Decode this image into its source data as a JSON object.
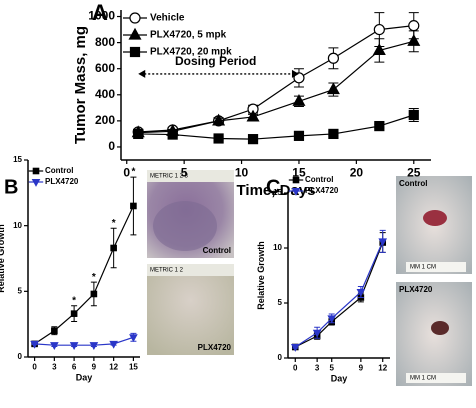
{
  "chart_data": [
    {
      "type": "line",
      "panel": "A",
      "x_label": "Time, Days",
      "y_label": "Tumor Mass, mg",
      "annotation": "Dosing Period",
      "x": [
        1,
        4,
        8,
        11,
        15,
        18,
        22,
        25
      ],
      "xlim": [
        -0.5,
        26.5
      ],
      "xticks": [
        0,
        5,
        10,
        15,
        20,
        25
      ],
      "ylim": [
        -100,
        1050
      ],
      "yticks": [
        0,
        200,
        400,
        600,
        800,
        1000
      ],
      "legend": "top-left",
      "series": [
        {
          "name": "Vehicle",
          "color": "#000000",
          "marker": "circle-open",
          "values": [
            115,
            130,
            200,
            290,
            530,
            680,
            900,
            930
          ],
          "errors": [
            20,
            20,
            25,
            30,
            70,
            80,
            130,
            100
          ]
        },
        {
          "name": "PLX4720, 5 mpk",
          "color": "#000000",
          "marker": "triangle",
          "values": [
            110,
            120,
            200,
            230,
            350,
            440,
            740,
            810
          ],
          "errors": [
            15,
            15,
            20,
            20,
            40,
            50,
            90,
            80
          ]
        },
        {
          "name": "PLX4720, 20 mpk",
          "color": "#000000",
          "marker": "square",
          "values": [
            100,
            95,
            65,
            60,
            85,
            100,
            160,
            245
          ],
          "errors": [
            10,
            10,
            10,
            10,
            10,
            15,
            15,
            50
          ]
        }
      ]
    },
    {
      "type": "line",
      "panel": "B",
      "x_label": "Day",
      "y_label": "Relative Growth",
      "x": [
        0,
        3,
        6,
        9,
        12,
        15
      ],
      "xlim": [
        -1,
        16
      ],
      "xticks": [
        0,
        3,
        6,
        9,
        12,
        15
      ],
      "ylim": [
        0,
        15
      ],
      "yticks": [
        0,
        5,
        10,
        15
      ],
      "legend": "top-left",
      "markers": [
        null,
        null,
        "*",
        "*",
        "*",
        "*"
      ],
      "series": [
        {
          "name": "Control",
          "color": "#000000",
          "marker": "square",
          "values": [
            1,
            2,
            3.3,
            4.8,
            8.3,
            11.5
          ],
          "errors": [
            0.1,
            0.3,
            0.6,
            0.9,
            1.5,
            2.2
          ]
        },
        {
          "name": "PLX4720",
          "color": "#2a36c8",
          "marker": "triangle-down",
          "values": [
            1,
            0.9,
            0.9,
            0.9,
            1.0,
            1.5
          ],
          "errors": [
            0.05,
            0.1,
            0.1,
            0.1,
            0.1,
            0.3
          ]
        }
      ],
      "photos": [
        {
          "label": "Control",
          "ruler": "METRIC  1      2      3"
        },
        {
          "label": "PLX4720",
          "ruler": "METRIC  1      2"
        }
      ]
    },
    {
      "type": "line",
      "panel": "C",
      "x_label": "Day",
      "y_label": "Relative Growth",
      "x": [
        0,
        3,
        5,
        9,
        12
      ],
      "xlim": [
        -1,
        13
      ],
      "xticks": [
        0,
        3,
        5,
        9,
        12
      ],
      "ylim": [
        0,
        15
      ],
      "yticks": [
        0,
        5,
        10,
        15
      ],
      "legend": "top-left",
      "series": [
        {
          "name": "Control",
          "color": "#000000",
          "marker": "square",
          "values": [
            1,
            2,
            3.3,
            5.5,
            10.5
          ],
          "errors": [
            0.1,
            0.3,
            0.3,
            0.4,
            0.9
          ]
        },
        {
          "name": "PLX4720",
          "color": "#2a36c8",
          "marker": "triangle-down",
          "values": [
            1,
            2.3,
            3.6,
            6,
            10.6
          ],
          "errors": [
            0.1,
            0.5,
            0.4,
            0.5,
            1.0
          ]
        }
      ],
      "photos": [
        {
          "label": "Control",
          "ruler": "MM  1 CM"
        },
        {
          "label": "PLX4720",
          "ruler": "MM  1 CM"
        }
      ]
    }
  ]
}
